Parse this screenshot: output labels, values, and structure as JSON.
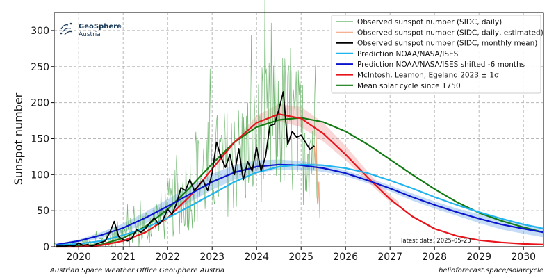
{
  "logo": {
    "line1": "GeoSphere",
    "line2": "Austria"
  },
  "footer": {
    "left": "Austrian Space Weather Office   GeoSphere Austria",
    "right": "helioforecast.space/solarcycle"
  },
  "annotation": "latest data: 2025-05-23",
  "chart_data": {
    "type": "line",
    "title": "",
    "xlabel": "",
    "ylabel": "Sunspot number",
    "xlim": [
      2019.45,
      2030.45
    ],
    "ylim": [
      0,
      325
    ],
    "xticks": [
      2020,
      2021,
      2022,
      2023,
      2024,
      2025,
      2026,
      2027,
      2028,
      2029,
      2030
    ],
    "yticks": [
      0,
      50,
      100,
      150,
      200,
      250,
      300
    ],
    "grid": true,
    "legend_position": "top-right",
    "legend": [
      {
        "label": "Observed sunspot number (SIDC, daily)",
        "color": "#5cad5c"
      },
      {
        "label": "Observed sunspot number (SIDC, daily, estimated)",
        "color": "#f4a582"
      },
      {
        "label": "Observed sunspot number (SIDC, monthly mean)",
        "color": "#000000"
      },
      {
        "label": "Prediction NOAA/NASA/ISES",
        "color": "#1fb4ee"
      },
      {
        "label": "Prediction NOAA/NASA/ISES shifted -6 months",
        "color": "#0a14cc"
      },
      {
        "label": "McIntosh, Leamon, Egeland 2023 ± 1σ",
        "color": "#e8141c"
      },
      {
        "label": "Mean solar cycle since 1750",
        "color": "#127a12"
      }
    ],
    "series": [
      {
        "name": "Observed sunspot number (SIDC, monthly mean)",
        "color": "#000000",
        "x": [
          2019.5,
          2019.6,
          2019.7,
          2019.8,
          2019.9,
          2020.0,
          2020.1,
          2020.2,
          2020.3,
          2020.4,
          2020.5,
          2020.6,
          2020.7,
          2020.8,
          2020.9,
          2021.0,
          2021.1,
          2021.2,
          2021.3,
          2021.4,
          2021.5,
          2021.6,
          2021.7,
          2021.8,
          2021.9,
          2022.0,
          2022.1,
          2022.2,
          2022.3,
          2022.4,
          2022.5,
          2022.6,
          2022.7,
          2022.8,
          2022.9,
          2023.0,
          2023.1,
          2023.2,
          2023.3,
          2023.4,
          2023.5,
          2023.6,
          2023.7,
          2023.8,
          2023.9,
          2024.0,
          2024.1,
          2024.2,
          2024.3,
          2024.4,
          2024.5,
          2024.6,
          2024.7,
          2024.8,
          2024.9,
          2025.0,
          2025.1,
          2025.2,
          2025.3
        ],
        "y": [
          1,
          1,
          1,
          2,
          1,
          5,
          2,
          3,
          1,
          4,
          6,
          8,
          20,
          35,
          14,
          10,
          8,
          12,
          24,
          20,
          25,
          33,
          40,
          31,
          38,
          52,
          45,
          60,
          82,
          78,
          93,
          78,
          85,
          92,
          78,
          102,
          145,
          124,
          110,
          128,
          100,
          136,
          93,
          118,
          105,
          138,
          105,
          125,
          168,
          170,
          190,
          215,
          142,
          160,
          152,
          155,
          145,
          135,
          140
        ]
      },
      {
        "name": "Prediction NOAA/NASA/ISES",
        "color": "#1fb4ee",
        "x": [
          2019.5,
          2020.0,
          2020.5,
          2021.0,
          2021.5,
          2022.0,
          2022.5,
          2023.0,
          2023.5,
          2024.0,
          2024.5,
          2025.0,
          2025.5,
          2026.0,
          2026.5,
          2027.0,
          2027.5,
          2028.0,
          2028.5,
          2029.0,
          2029.5,
          2030.0,
          2030.45
        ],
        "y": [
          2,
          4,
          8,
          16,
          26,
          40,
          56,
          73,
          90,
          103,
          111,
          114,
          113,
          109,
          102,
          92,
          81,
          69,
          58,
          48,
          39,
          31,
          25
        ]
      },
      {
        "name": "Prediction NOAA/NASA/ISES shifted -6 months",
        "color": "#0a14cc",
        "x": [
          2019.5,
          2020.0,
          2020.5,
          2021.0,
          2021.5,
          2022.0,
          2022.5,
          2023.0,
          2023.5,
          2024.0,
          2024.5,
          2025.0,
          2025.5,
          2026.0,
          2026.5,
          2027.0,
          2027.5,
          2028.0,
          2028.5,
          2029.0,
          2029.5,
          2030.0,
          2030.45
        ],
        "y": [
          3,
          8,
          16,
          26,
          40,
          56,
          73,
          90,
          103,
          111,
          114,
          113,
          109,
          102,
          92,
          81,
          69,
          58,
          48,
          39,
          31,
          25,
          20
        ]
      },
      {
        "name": "McIntosh, Leamon, Egeland 2023 ± 1σ",
        "color": "#e8141c",
        "x": [
          2019.5,
          2020.0,
          2020.5,
          2021.0,
          2021.5,
          2022.0,
          2022.5,
          2023.0,
          2023.5,
          2024.0,
          2024.5,
          2025.0,
          2025.5,
          2026.0,
          2026.5,
          2027.0,
          2027.5,
          2028.0,
          2028.5,
          2029.0,
          2029.5,
          2030.0,
          2030.45
        ],
        "y": [
          0,
          0,
          2,
          8,
          20,
          40,
          70,
          108,
          145,
          172,
          184,
          178,
          157,
          128,
          96,
          66,
          42,
          25,
          15,
          9,
          6,
          4,
          3
        ]
      },
      {
        "name": "Mean solar cycle since 1750",
        "color": "#127a12",
        "x": [
          2019.5,
          2020.0,
          2020.5,
          2021.0,
          2021.5,
          2022.0,
          2022.5,
          2023.0,
          2023.5,
          2024.0,
          2024.5,
          2025.0,
          2025.5,
          2026.0,
          2026.5,
          2027.0,
          2027.5,
          2028.0,
          2028.5,
          2029.0,
          2029.5,
          2030.0,
          2030.45
        ],
        "y": [
          0,
          1,
          3,
          12,
          28,
          52,
          82,
          115,
          145,
          166,
          176,
          179,
          173,
          160,
          142,
          121,
          100,
          80,
          62,
          47,
          36,
          27,
          20
        ]
      }
    ],
    "bands": [
      {
        "name": "Prediction NOAA/NASA/ISES shifted -6 months",
        "color": "#5a9be8",
        "x": [
          2019.5,
          2020.0,
          2020.5,
          2021.0,
          2021.5,
          2022.0,
          2022.5,
          2023.0,
          2023.5,
          2024.0,
          2024.5,
          2025.0,
          2025.5,
          2026.0,
          2026.5,
          2027.0,
          2027.5,
          2028.0,
          2028.5,
          2029.0,
          2029.5,
          2030.0,
          2030.45
        ],
        "upper": [
          4,
          10,
          20,
          32,
          48,
          66,
          84,
          101,
          113,
          120,
          121,
          119,
          114,
          106,
          96,
          85,
          74,
          63,
          53,
          45,
          38,
          32,
          27
        ],
        "lower": [
          2,
          6,
          12,
          20,
          32,
          46,
          62,
          79,
          93,
          102,
          107,
          107,
          104,
          98,
          88,
          77,
          64,
          53,
          43,
          33,
          24,
          18,
          13
        ]
      },
      {
        "name": "McIntosh, Leamon, Egeland 2023 ± 1σ",
        "color": "#f08c8c",
        "x": [
          2023.7,
          2024.0,
          2024.5,
          2025.0,
          2025.5,
          2026.0,
          2026.5,
          2027.0,
          2027.2
        ],
        "upper": [
          162,
          182,
          198,
          194,
          172,
          140,
          104,
          72,
          62
        ],
        "lower": [
          152,
          166,
          174,
          166,
          146,
          120,
          90,
          62,
          56
        ]
      }
    ],
    "annotations": [
      {
        "text": "latest data: 2025-05-23",
        "x": 2027.65,
        "y": 7
      }
    ]
  },
  "observed_daily": {
    "color": "#5cad5c",
    "x_start": 2019.45,
    "x_end": 2025.38,
    "step": 0.016,
    "envelope_x": [
      2019.45,
      2020.0,
      2020.5,
      2021.0,
      2021.5,
      2022.0,
      2022.5,
      2023.0,
      2023.5,
      2024.0,
      2024.5,
      2025.0,
      2025.38
    ],
    "envelope_y": [
      2,
      3,
      8,
      16,
      28,
      50,
      82,
      112,
      120,
      145,
      178,
      152,
      140
    ],
    "spread": [
      2,
      4,
      8,
      16,
      22,
      34,
      48,
      60,
      62,
      70,
      85,
      75,
      70
    ]
  },
  "observed_estimated": {
    "color": "#f4a582",
    "x": [
      2025.3,
      2025.32,
      2025.34,
      2025.36,
      2025.38,
      2025.4,
      2025.42
    ],
    "y": [
      140,
      115,
      152,
      95,
      60,
      90,
      40
    ]
  }
}
